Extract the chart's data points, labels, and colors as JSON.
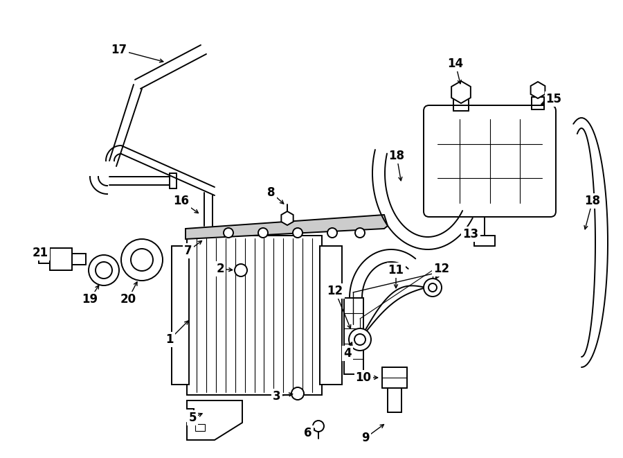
{
  "bg_color": "#ffffff",
  "line_color": "#000000",
  "lw": 1.4,
  "lw_thin": 0.8,
  "lw_thick": 2.0,
  "fs": 12,
  "figsize": [
    9.0,
    6.61
  ],
  "dpi": 100
}
